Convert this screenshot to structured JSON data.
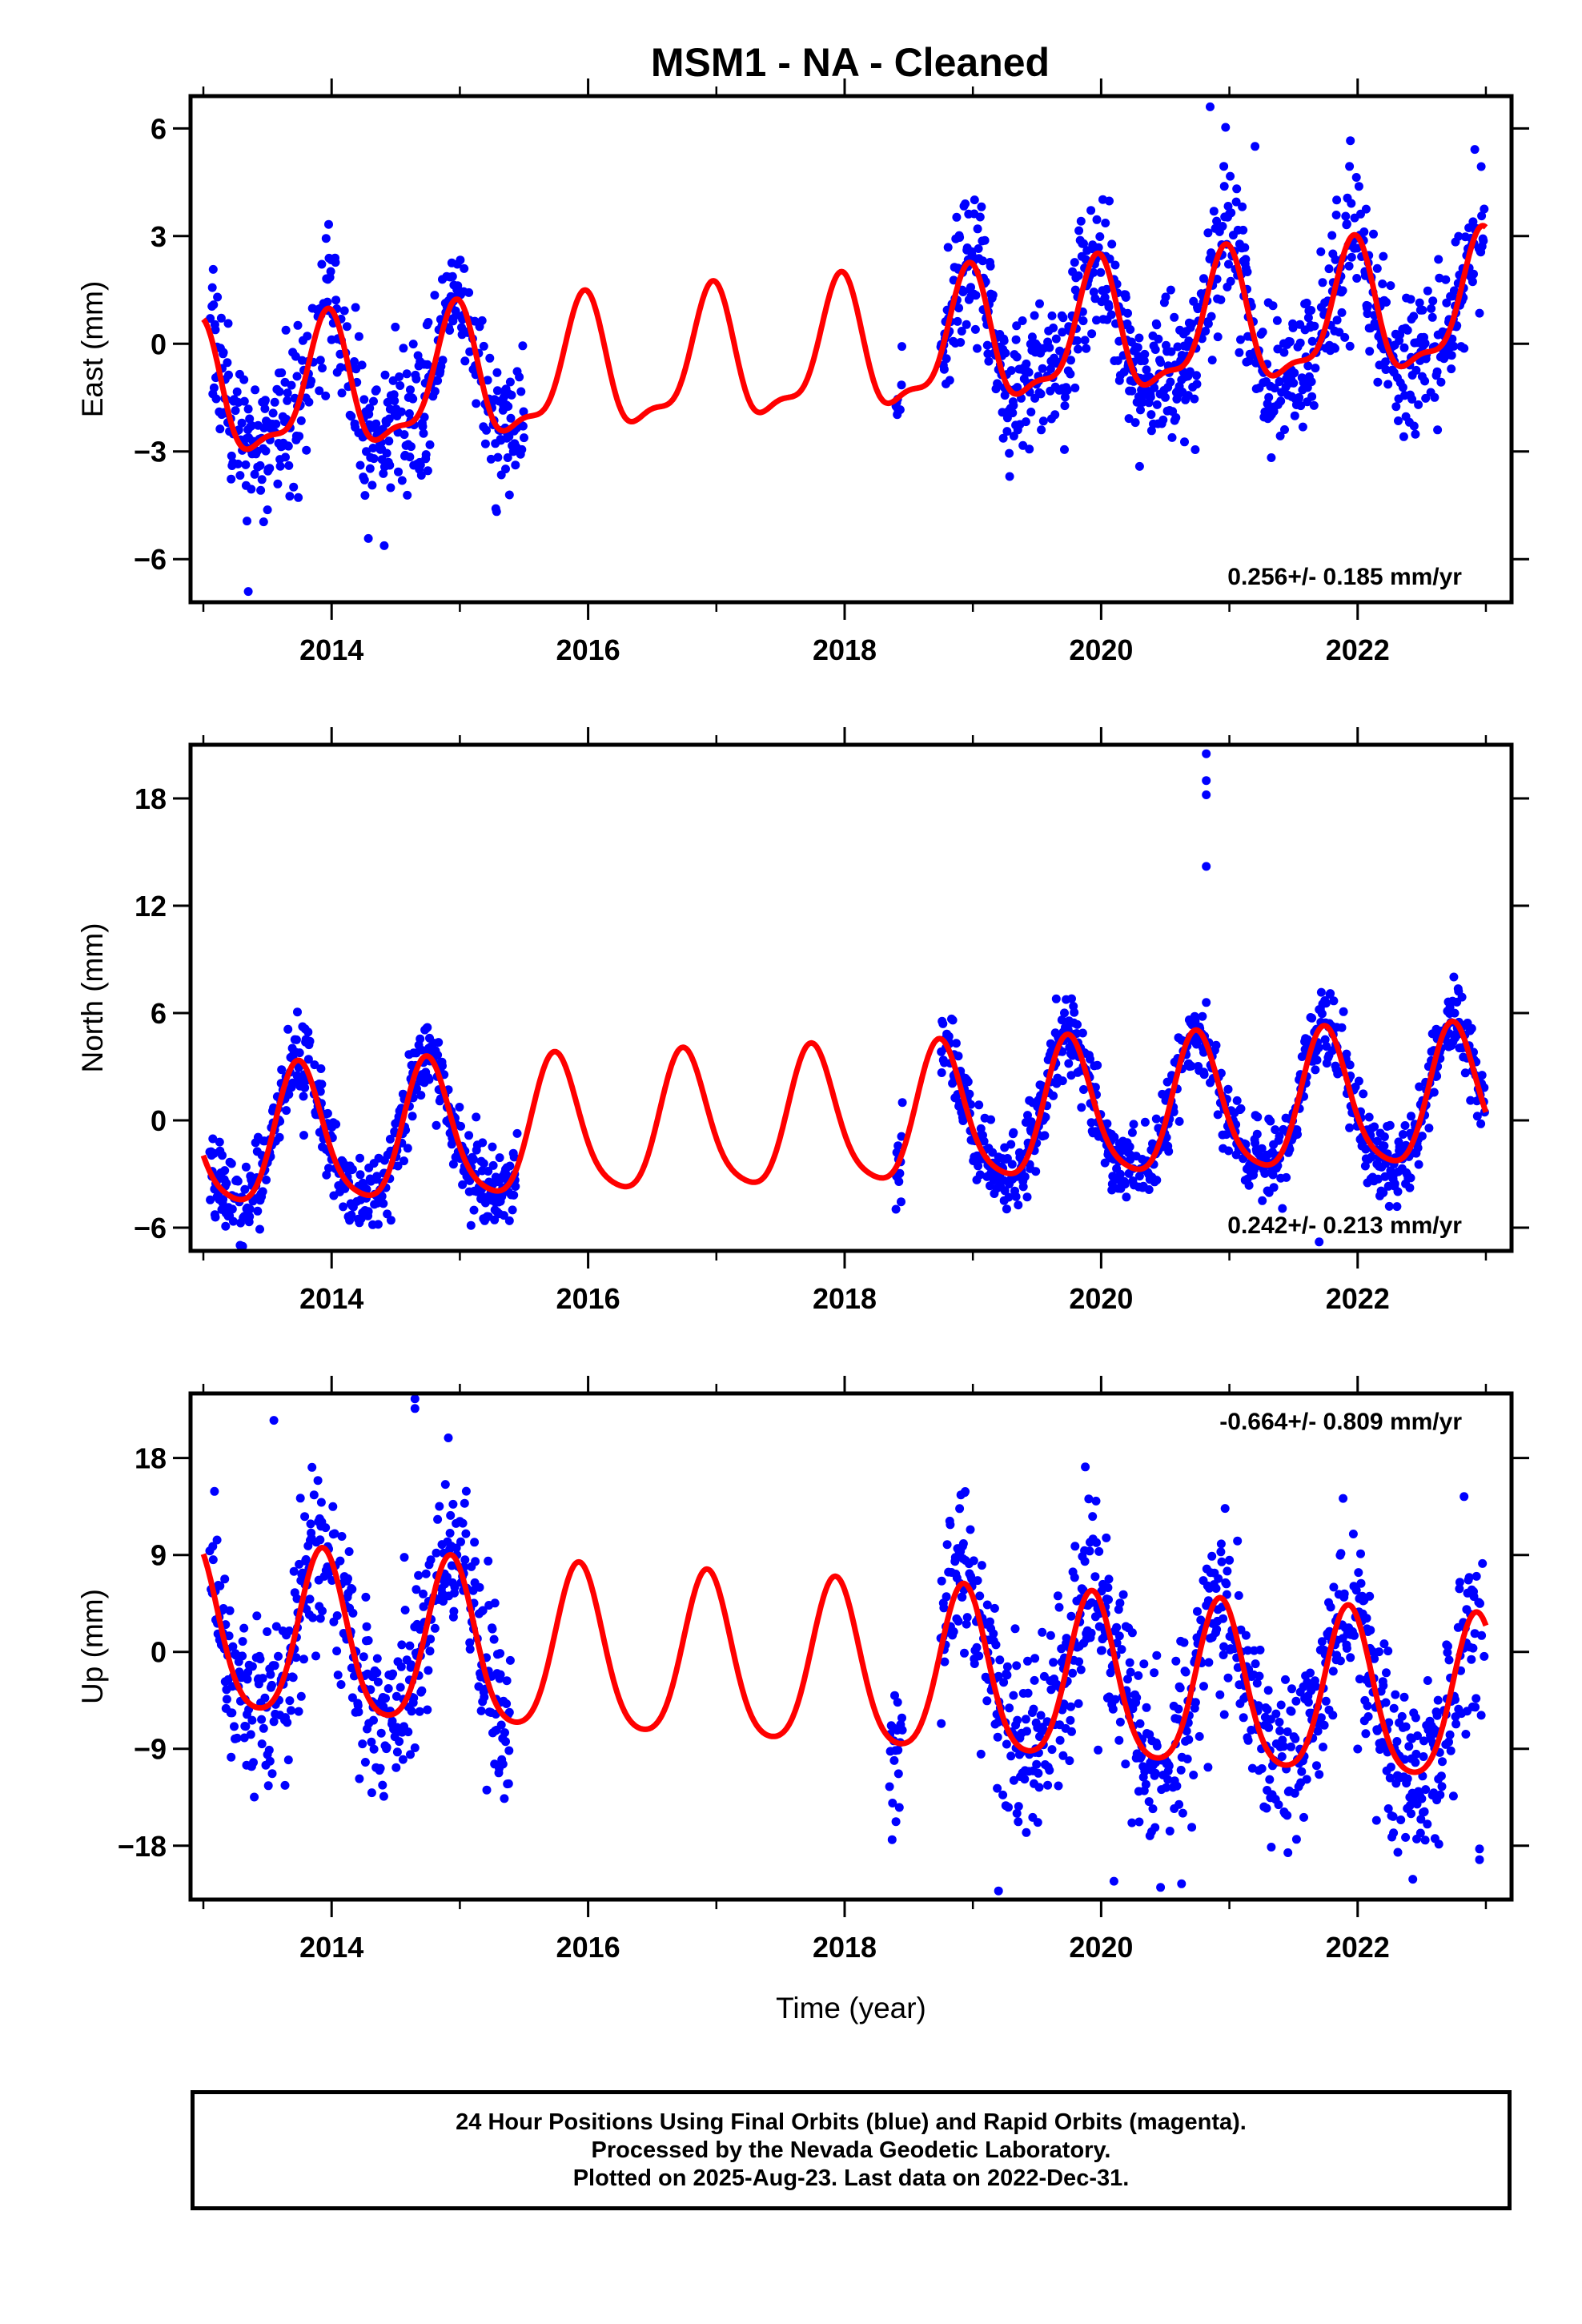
{
  "title": "MSM1  - NA - Cleaned",
  "chart_data": [
    {
      "type": "scatter",
      "name": "east",
      "ylabel": "East (mm)",
      "xlabel": "",
      "xlim": [
        2012.9,
        2023.2
      ],
      "ylim": [
        -7.2,
        6.9
      ],
      "xticks": [
        2014,
        2016,
        2018,
        2020,
        2022
      ],
      "yticks": [
        -6,
        -3,
        0,
        3,
        6
      ],
      "rate_label": "0.256+/- 0.185 mm/yr",
      "rate_position": "bottom-right",
      "model": {
        "offset": -1.6,
        "trend": 0.256,
        "annual_amp": 1.75,
        "annual_phase": 2013.71,
        "semiannual_amp": 0.6,
        "semiannual_phase": 2013.86
      },
      "data_segments": [
        [
          2013.05,
          2015.5
        ],
        [
          2018.4,
          2018.45
        ],
        [
          2018.75,
          2022.99
        ]
      ],
      "noise_sd": 1.0,
      "point_color": "#0000ff",
      "line_color": "#ff0000",
      "outliers": [
        [
          2020.85,
          6.6
        ],
        [
          2021.2,
          5.5
        ],
        [
          2013.35,
          -6.9
        ]
      ]
    },
    {
      "type": "scatter",
      "name": "north",
      "ylabel": "North (mm)",
      "xlabel": "",
      "xlim": [
        2012.9,
        2023.2
      ],
      "ylim": [
        -7.3,
        21.0
      ],
      "xticks": [
        2014,
        2016,
        2018,
        2020,
        2022
      ],
      "yticks": [
        -6,
        0,
        6,
        12,
        18
      ],
      "rate_label": "0.242+/- 0.213 mm/yr",
      "rate_position": "bottom-right",
      "model": {
        "offset": -1.3,
        "trend": 0.242,
        "annual_amp": 3.8,
        "annual_phase": 2013.5,
        "semiannual_amp": 0.7,
        "semiannual_phase": 2013.6
      },
      "data_segments": [
        [
          2013.05,
          2015.45
        ],
        [
          2018.4,
          2018.45
        ],
        [
          2018.75,
          2022.99
        ]
      ],
      "noise_sd": 1.1,
      "point_color": "#0000ff",
      "line_color": "#ff0000",
      "outliers": [
        [
          2020.82,
          20.5
        ],
        [
          2020.82,
          19.0
        ],
        [
          2020.82,
          18.2
        ],
        [
          2020.82,
          14.2
        ],
        [
          2020.8,
          3.8
        ],
        [
          2021.7,
          -6.8
        ]
      ]
    },
    {
      "type": "scatter",
      "name": "up",
      "ylabel": "Up (mm)",
      "xlabel": "Time (year)",
      "xlim": [
        2012.9,
        2023.2
      ],
      "ylim": [
        -23.0,
        24.0
      ],
      "xticks": [
        2014,
        2016,
        2018,
        2020,
        2022
      ],
      "yticks": [
        -18,
        -9,
        0,
        9,
        18
      ],
      "rate_label": "-0.664+/- 0.809 mm/yr",
      "rate_position": "top-right",
      "model": {
        "offset": 1.5,
        "trend": -0.664,
        "annual_amp": 7.6,
        "annual_phase": 2013.68,
        "semiannual_amp": 1.2,
        "semiannual_phase": 2013.8
      },
      "data_segments": [
        [
          2013.05,
          2015.4
        ],
        [
          2018.35,
          2018.45
        ],
        [
          2018.75,
          2022.99
        ]
      ],
      "noise_sd": 4.2,
      "point_color": "#0000ff",
      "line_color": "#ff0000",
      "outliers": [
        [
          2014.65,
          23.5
        ],
        [
          2014.65,
          22.6
        ],
        [
          2013.55,
          21.5
        ],
        [
          2019.2,
          -22.2
        ],
        [
          2020.1,
          -21.3
        ],
        [
          2022.95,
          -19.3
        ],
        [
          2022.95,
          -18.3
        ]
      ]
    }
  ],
  "footer": {
    "line1": "24 Hour Positions Using Final Orbits (blue) and Rapid Orbits (magenta).",
    "line2": "Processed by the Nevada Geodetic Laboratory.",
    "line3": "Plotted on 2025-Aug-23. Last data on 2022-Dec-31."
  }
}
